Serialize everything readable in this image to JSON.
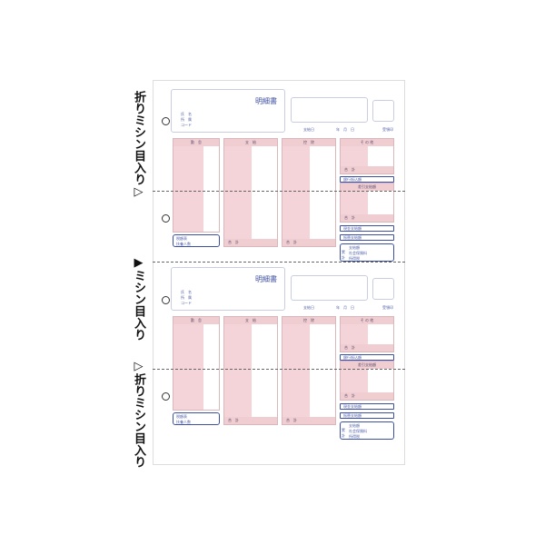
{
  "side_labels": {
    "fold_top": "折りミシン目入り▷",
    "perforation": "▶ミシン目入り",
    "fold_bottom": "▷折りミシン目入り"
  },
  "form": {
    "title": "明細書",
    "name": "氏　名",
    "department": "所　属",
    "code": "コード",
    "pay_date": "支給日",
    "date": "年　月　日",
    "receipt_seal": "受領印",
    "attendance": "勤　怠",
    "payments": "支　給",
    "deductions": "控　除",
    "other": "そ の 他",
    "total": "合　計",
    "bank_transfer": "銀行振込額",
    "net_pay": "差引支給額",
    "cash_payment": "現金支給額",
    "transfer_payment": "振替支給額",
    "tax_table": "税額表",
    "dependents": "扶養人数",
    "cum_label": "累計",
    "cum_payment": "支給額",
    "cum_insurance": "社会保険料",
    "cum_tax": "所得税"
  },
  "colors": {
    "pink": "#efcdd1",
    "blue": "#3d4fa0"
  }
}
